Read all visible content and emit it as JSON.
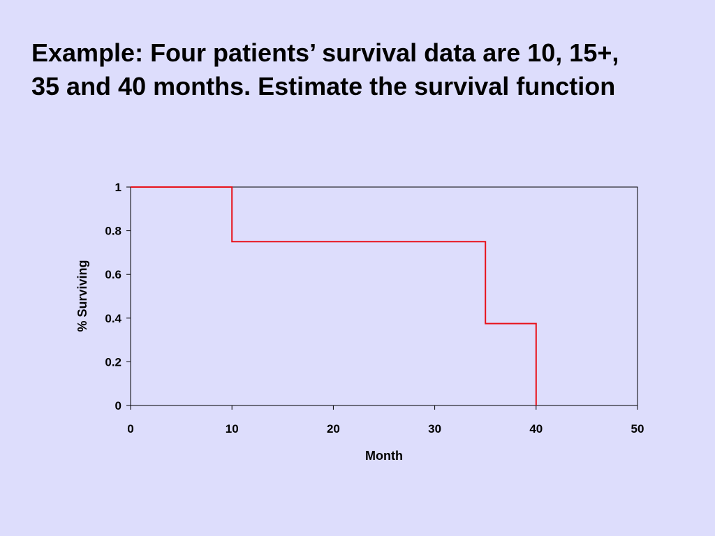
{
  "slide": {
    "title_lines": [
      "Example:  Four patients’ survival data are 10, 15+,",
      "35 and 40 months.  Estimate the survival function"
    ]
  },
  "colors": {
    "background": "#ddddfc",
    "line": "#e8121b",
    "axis": "#000000"
  },
  "chart_data": {
    "type": "line",
    "step": true,
    "xlabel": "Month",
    "ylabel": "% Surviving",
    "xlim": [
      0,
      50
    ],
    "ylim": [
      0,
      1
    ],
    "x_ticks": [
      "0",
      "10",
      "20",
      "30",
      "40",
      "50"
    ],
    "y_ticks": [
      "0",
      "0.2",
      "0.4",
      "0.6",
      "0.8",
      "1"
    ],
    "x_tick_values": [
      0,
      10,
      20,
      30,
      40,
      50
    ],
    "y_tick_values": [
      0,
      0.2,
      0.4,
      0.6,
      0.8,
      1
    ],
    "grid": false,
    "legend": "none",
    "series": [
      {
        "x": [
          0,
          10,
          35,
          40
        ],
        "y": [
          1,
          0.75,
          0.375,
          0
        ]
      }
    ]
  }
}
